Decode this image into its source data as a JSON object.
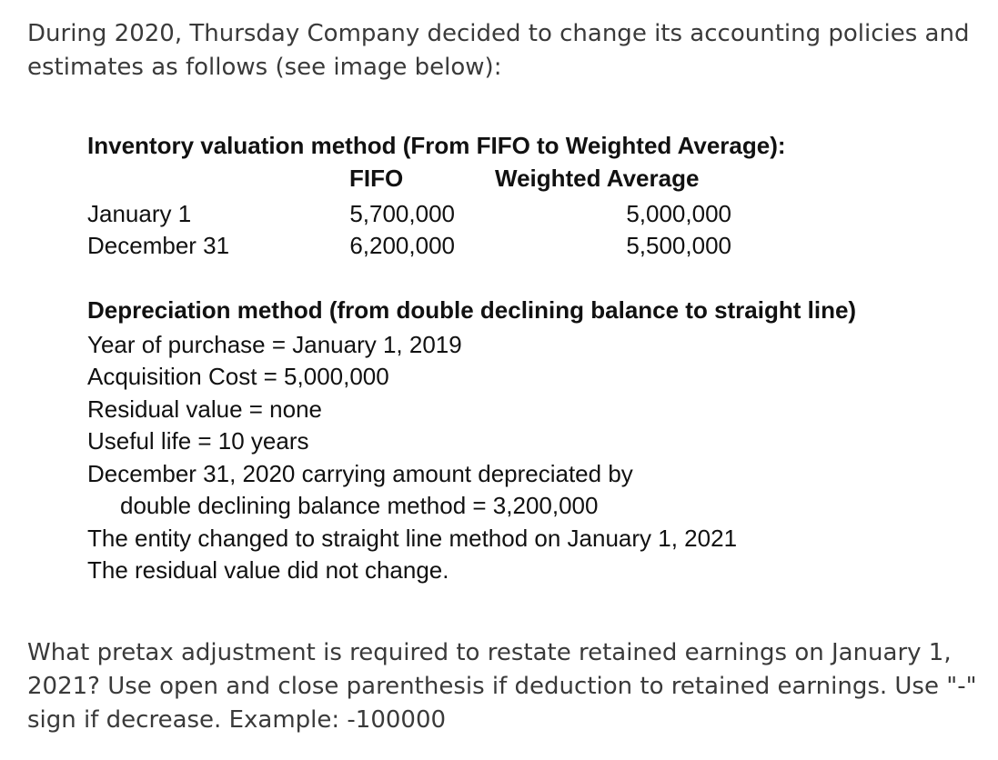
{
  "intro": "During 2020, Thursday Company decided to change its accounting policies and estimates as follows (see image below):",
  "figure": {
    "inventory": {
      "heading": "Inventory valuation method (From FIFO to Weighted Average):",
      "col_fifo": "FIFO",
      "col_wavg": "Weighted Average",
      "rows": [
        {
          "label": "January 1",
          "fifo": "5,700,000",
          "wavg": "5,000,000"
        },
        {
          "label": "December 31",
          "fifo": "6,200,000",
          "wavg": "5,500,000"
        }
      ]
    },
    "depreciation": {
      "heading": "Depreciation method (from double declining balance to straight line)",
      "lines": [
        "Year of purchase = January 1, 2019",
        "Acquisition Cost = 5,000,000",
        "Residual value = none",
        "Useful life = 10 years",
        "December 31, 2020 carrying amount depreciated by",
        "double declining balance method = 3,200,000",
        "The entity changed to straight line method on January 1, 2021",
        "The residual value did not change."
      ]
    }
  },
  "question": "What pretax adjustment is required to restate retained earnings on January 1, 2021? Use open and close parenthesis if deduction to retained earnings.  Use \"-\" sign if decrease. Example: -100000"
}
